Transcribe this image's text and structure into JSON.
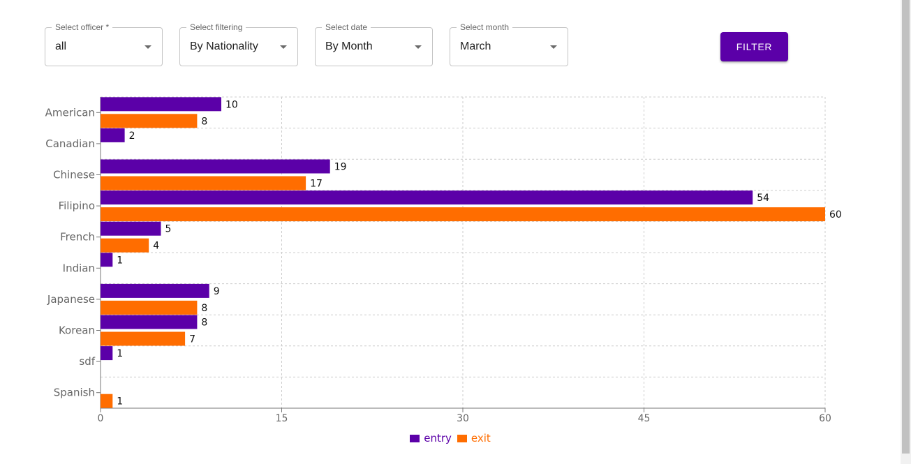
{
  "filters": {
    "officer": {
      "label": "Select officer *",
      "value": "all"
    },
    "filtering": {
      "label": "Select filtering",
      "value": "By Nationality"
    },
    "date": {
      "label": "Select date",
      "value": "By Month"
    },
    "month": {
      "label": "Select month",
      "value": "March"
    },
    "filter_button_label": "FILTER"
  },
  "icons": {
    "dropdown": "chevron-down-icon"
  },
  "colors": {
    "accent": "#5b00a8",
    "entry": "#5b00a8",
    "exit": "#ff6d00"
  },
  "chart_data": {
    "type": "bar",
    "orientation": "horizontal",
    "categories": [
      "American",
      "Canadian",
      "Chinese",
      "Filipino",
      "French",
      "Indian",
      "Japanese",
      "Korean",
      "sdf",
      "Spanish"
    ],
    "series": [
      {
        "name": "entry",
        "values": [
          10,
          2,
          19,
          54,
          5,
          1,
          9,
          8,
          1,
          null
        ],
        "color": "#5b00a8"
      },
      {
        "name": "exit",
        "values": [
          8,
          null,
          17,
          60,
          4,
          null,
          8,
          7,
          null,
          1
        ],
        "color": "#ff6d00"
      }
    ],
    "x_ticks": [
      0,
      15,
      30,
      45,
      60
    ],
    "xlim": [
      0,
      60
    ],
    "grid": true,
    "legend": "bottom-center"
  }
}
